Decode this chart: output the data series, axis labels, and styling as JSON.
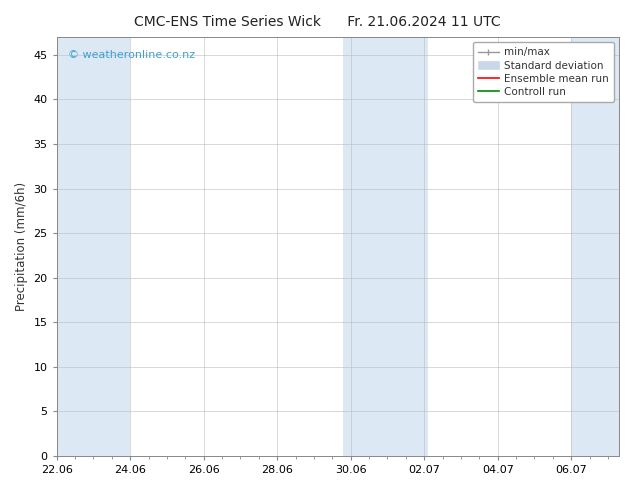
{
  "title_left": "CMC-ENS Time Series Wick",
  "title_right": "Fr. 21.06.2024 11 UTC",
  "ylabel": "Precipitation (mm/6h)",
  "watermark": "© weatheronline.co.nz",
  "watermark_color": "#3fa0d0",
  "ylim": [
    0,
    47
  ],
  "yticks": [
    0,
    5,
    10,
    15,
    20,
    25,
    30,
    35,
    40,
    45
  ],
  "xlim": [
    0,
    15.3
  ],
  "xtick_labels": [
    "22.06",
    "24.06",
    "26.06",
    "28.06",
    "30.06",
    "02.07",
    "04.07",
    "06.07"
  ],
  "xtick_positions_days": [
    0,
    2,
    4,
    6,
    8,
    10,
    12,
    14
  ],
  "shaded_bands": [
    {
      "start": -0.1,
      "end": 2.0
    },
    {
      "start": 7.8,
      "end": 9.0
    },
    {
      "start": 9.0,
      "end": 10.1
    },
    {
      "start": 14.0,
      "end": 15.5
    }
  ],
  "band_color": "#dce9f5",
  "bg_color": "#ffffff",
  "grid_color": "#bbbbbb",
  "spine_color": "#888888",
  "legend_items": [
    {
      "label": "min/max",
      "color": "#999999"
    },
    {
      "label": "Standard deviation",
      "color": "#c8d8e8"
    },
    {
      "label": "Ensemble mean run",
      "color": "#ff0000"
    },
    {
      "label": "Controll run",
      "color": "#008800"
    }
  ],
  "title_fontsize": 10,
  "tick_fontsize": 8,
  "label_fontsize": 8.5,
  "legend_fontsize": 7.5,
  "watermark_fontsize": 8
}
